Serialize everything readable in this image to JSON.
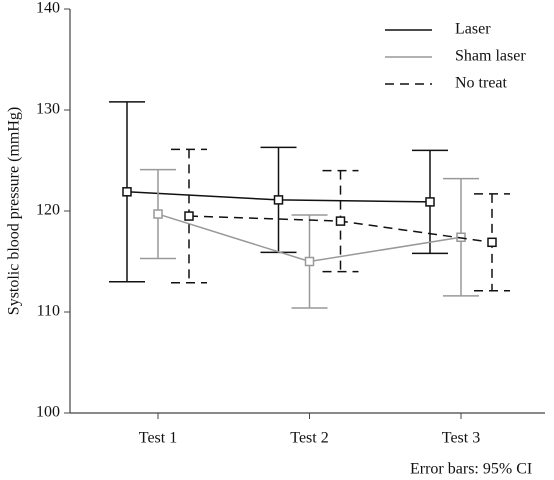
{
  "chart_data": {
    "type": "line",
    "y_label": "Systolic blood pressure (mmHg)",
    "note": "Error bars: 95% CI",
    "categories": [
      "Test 1",
      "Test 2",
      "Test 3"
    ],
    "ylim": [
      100,
      140
    ],
    "yticks": [
      100,
      110,
      120,
      130,
      140
    ],
    "legend": "top-right",
    "series": [
      {
        "name": "Laser",
        "color": "#111111",
        "dash": false,
        "values": [
          121.9,
          121.1,
          120.9
        ],
        "errors": [
          8.9,
          5.2,
          5.1
        ]
      },
      {
        "name": "Sham laser",
        "color": "#999999",
        "dash": false,
        "values": [
          119.7,
          115.0,
          117.4
        ],
        "errors": [
          4.4,
          4.6,
          5.8
        ]
      },
      {
        "name": "No treat",
        "color": "#111111",
        "dash": true,
        "values": [
          119.5,
          119.0,
          116.9
        ],
        "errors": [
          6.6,
          5.0,
          4.8
        ]
      }
    ]
  }
}
